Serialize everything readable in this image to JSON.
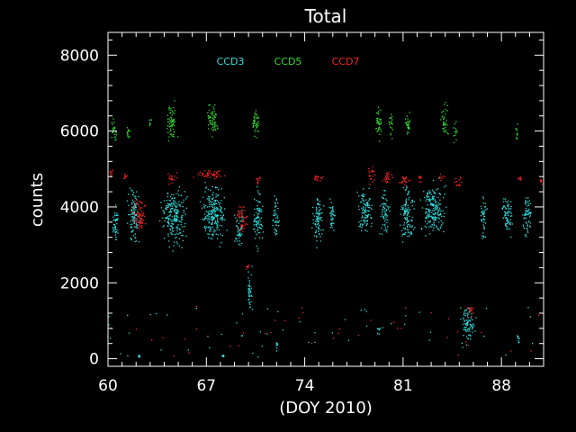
{
  "chart_data": {
    "type": "scatter",
    "title": "Total",
    "xlabel": "(DOY 2010)",
    "ylabel": "counts",
    "xlim": [
      60,
      91
    ],
    "ylim": [
      -200,
      8600
    ],
    "xticks": [
      60,
      67,
      74,
      81,
      88
    ],
    "yticks": [
      0,
      2000,
      4000,
      6000,
      8000
    ],
    "xtick_labels": [
      "60",
      "67",
      "74",
      "81",
      "88"
    ],
    "ytick_labels": [
      "0",
      "2000",
      "4000",
      "6000",
      "8000"
    ],
    "legend_position": "top-center",
    "grid": false,
    "series": [
      {
        "name": "CCD3",
        "color": "#33dddd",
        "clusters": [
          {
            "x": [
              61.2,
              62.4
            ],
            "y": [
              2800,
              4700
            ]
          },
          {
            "x": [
              63.5,
              65.8
            ],
            "y": [
              2800,
              4800
            ]
          },
          {
            "x": [
              66.3,
              68.6
            ],
            "y": [
              2800,
              4800
            ]
          },
          {
            "x": [
              68.9,
              69.7
            ],
            "y": [
              2700,
              4100
            ]
          },
          {
            "x": [
              70.2,
              71.1
            ],
            "y": [
              2700,
              4700
            ]
          },
          {
            "x": [
              71.6,
              72.2
            ],
            "y": [
              3000,
              4600
            ]
          },
          {
            "x": [
              74.4,
              75.4
            ],
            "y": [
              2800,
              4600
            ]
          },
          {
            "x": [
              75.6,
              76.2
            ],
            "y": [
              3100,
              4400
            ]
          },
          {
            "x": [
              77.6,
              79.0
            ],
            "y": [
              3100,
              4700
            ]
          },
          {
            "x": [
              79.2,
              80.1
            ],
            "y": [
              3100,
              4600
            ]
          },
          {
            "x": [
              80.6,
              81.9
            ],
            "y": [
              2900,
              4800
            ]
          },
          {
            "x": [
              82.0,
              84.2
            ],
            "y": [
              3000,
              4900
            ]
          },
          {
            "x": [
              84.9,
              86.3
            ],
            "y": [
              300,
              1500
            ]
          },
          {
            "x": [
              86.4,
              87.0
            ],
            "y": [
              3000,
              4500
            ]
          },
          {
            "x": [
              87.9,
              88.9
            ],
            "y": [
              3000,
              4500
            ]
          },
          {
            "x": [
              89.4,
              90.2
            ],
            "y": [
              3000,
              4600
            ]
          },
          {
            "x": [
              69.8,
              70.3
            ],
            "y": [
              1000,
              2600
            ]
          },
          {
            "x": [
              79.1,
              79.4
            ],
            "y": [
              500,
              1000
            ]
          },
          {
            "x": [
              62.0,
              62.3
            ],
            "y": [
              20,
              140
            ]
          },
          {
            "x": [
              68.0,
              68.3
            ],
            "y": [
              20,
              140
            ]
          },
          {
            "x": [
              89.0,
              89.3
            ],
            "y": [
              350,
              700
            ]
          },
          {
            "x": [
              71.9,
              72.1
            ],
            "y": [
              50,
              700
            ]
          },
          {
            "x": [
              60.2,
              60.8
            ],
            "y": [
              2900,
              4400
            ]
          }
        ]
      },
      {
        "name": "CCD5",
        "color": "#33dd33",
        "clusters": [
          {
            "x": [
              60.1,
              60.7
            ],
            "y": [
              5600,
              6400
            ]
          },
          {
            "x": [
              61.2,
              61.6
            ],
            "y": [
              5600,
              6300
            ]
          },
          {
            "x": [
              62.8,
              63.1
            ],
            "y": [
              6000,
              6400
            ]
          },
          {
            "x": [
              64.0,
              65.0
            ],
            "y": [
              5600,
              6900
            ]
          },
          {
            "x": [
              66.9,
              67.9
            ],
            "y": [
              5700,
              7000
            ]
          },
          {
            "x": [
              70.1,
              70.9
            ],
            "y": [
              5700,
              6800
            ]
          },
          {
            "x": [
              78.9,
              79.5
            ],
            "y": [
              5600,
              6900
            ]
          },
          {
            "x": [
              79.9,
              80.3
            ],
            "y": [
              5700,
              6700
            ]
          },
          {
            "x": [
              81.0,
              81.6
            ],
            "y": [
              5700,
              6700
            ]
          },
          {
            "x": [
              83.6,
              84.2
            ],
            "y": [
              5700,
              7000
            ]
          },
          {
            "x": [
              84.5,
              84.9
            ],
            "y": [
              5600,
              6300
            ]
          },
          {
            "x": [
              88.9,
              89.2
            ],
            "y": [
              5600,
              6400
            ]
          }
        ]
      },
      {
        "name": "CCD7",
        "color": "#ff2222",
        "clusters": [
          {
            "x": [
              60.0,
              60.4
            ],
            "y": [
              4750,
              5050
            ]
          },
          {
            "x": [
              61.0,
              61.4
            ],
            "y": [
              4650,
              4950
            ]
          },
          {
            "x": [
              61.5,
              62.8
            ],
            "y": [
              3200,
              4400
            ]
          },
          {
            "x": [
              64.0,
              65.0
            ],
            "y": [
              4600,
              4950
            ]
          },
          {
            "x": [
              65.8,
              68.6
            ],
            "y": [
              4700,
              5050
            ]
          },
          {
            "x": [
              69.0,
              70.0
            ],
            "y": [
              3200,
              4200
            ]
          },
          {
            "x": [
              69.7,
              70.1
            ],
            "y": [
              2300,
              2600
            ]
          },
          {
            "x": [
              70.3,
              71.0
            ],
            "y": [
              4550,
              4900
            ]
          },
          {
            "x": [
              74.4,
              75.5
            ],
            "y": [
              4650,
              4950
            ]
          },
          {
            "x": [
              78.4,
              79.0
            ],
            "y": [
              4500,
              5200
            ]
          },
          {
            "x": [
              79.3,
              80.3
            ],
            "y": [
              4500,
              5000
            ]
          },
          {
            "x": [
              80.6,
              81.6
            ],
            "y": [
              4500,
              4950
            ]
          },
          {
            "x": [
              82.0,
              82.4
            ],
            "y": [
              4600,
              4900
            ]
          },
          {
            "x": [
              83.5,
              84.0
            ],
            "y": [
              4650,
              4950
            ]
          },
          {
            "x": [
              84.5,
              85.3
            ],
            "y": [
              4450,
              4850
            ]
          },
          {
            "x": [
              85.3,
              86.3
            ],
            "y": [
              1150,
              1450
            ]
          },
          {
            "x": [
              89.1,
              89.5
            ],
            "y": [
              4650,
              4850
            ]
          },
          {
            "x": [
              90.6,
              91.0
            ],
            "y": [
              4600,
              4800
            ]
          }
        ]
      }
    ]
  }
}
